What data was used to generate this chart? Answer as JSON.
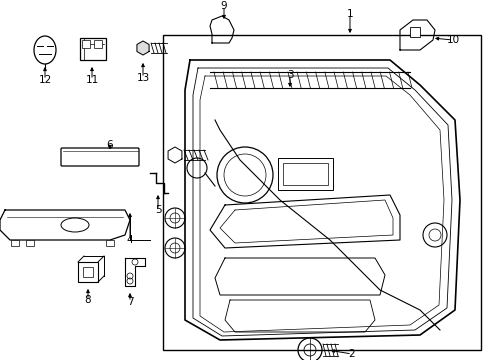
{
  "background_color": "#ffffff",
  "line_color": "#000000",
  "text_color": "#000000",
  "figsize": [
    4.89,
    3.6
  ],
  "dpi": 100
}
